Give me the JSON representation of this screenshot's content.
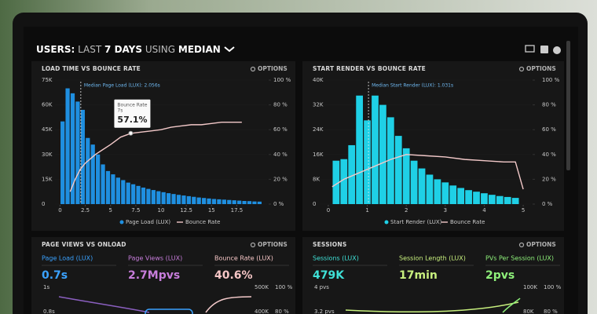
{
  "header": {
    "title_parts": [
      "USERS:",
      "LAST",
      "7 DAYS",
      "USING",
      "MEDIAN"
    ]
  },
  "panels": [
    {
      "title": "LOAD TIME VS BOUNCE RATE",
      "options": "OPTIONS",
      "chart": {
        "type": "histogram",
        "color": "#1f8fe0",
        "bar_name": "Page Load (LUX)",
        "bins": [
          0,
          0.5,
          1,
          1.5,
          2,
          2.5,
          3,
          3.5,
          4,
          4.5,
          5,
          5.5,
          6,
          6.5,
          7,
          7.5,
          8,
          8.5,
          9,
          9.5,
          10,
          10.5,
          11,
          11.5,
          12,
          12.5,
          13,
          13.5,
          14,
          14.5,
          15,
          15.5,
          16,
          16.5,
          17,
          17.5,
          18,
          18.5,
          19,
          19.5,
          20
        ],
        "counts": [
          50000,
          70000,
          67000,
          62000,
          57000,
          40000,
          36000,
          30000,
          24000,
          20000,
          18000,
          16000,
          14500,
          13000,
          12000,
          11000,
          10000,
          9200,
          8500,
          7800,
          7200,
          6600,
          6100,
          5600,
          5200,
          4800,
          4400,
          4000,
          3700,
          3400,
          3100,
          2900,
          2700,
          2500,
          2300,
          2100,
          1900,
          1800,
          1600,
          1500
        ],
        "xlim": [
          -0.5,
          20.5
        ],
        "xticks": [
          0,
          2.5,
          5,
          7.5,
          10,
          12.5,
          15,
          17.5
        ],
        "ylim": [
          0,
          75000
        ],
        "yticks": [
          0,
          {
            "value": 15000,
            "label": "15K"
          },
          {
            "value": 30000,
            "label": "30K"
          },
          {
            "value": 45000,
            "label": "45K"
          },
          {
            "value": 60000,
            "label": "60K"
          },
          {
            "value": 75000,
            "label": "75K"
          }
        ],
        "y2lim": [
          0,
          100
        ],
        "y2ticks": [
          {
            "value": 0,
            "label": "0 %"
          },
          {
            "value": 20,
            "label": "20 %"
          },
          {
            "value": 40,
            "label": "40 %"
          },
          {
            "value": 60,
            "label": "60 %"
          },
          {
            "value": 80,
            "label": "80 %"
          },
          {
            "value": 100,
            "label": "100 %"
          }
        ],
        "series": [
          {
            "name": "Bounce Rate",
            "color": "#f3c9c9",
            "axis": "y2",
            "x": [
              1,
              1.5,
              2,
              2.5,
              3.5,
              5,
              6,
              7,
              8,
              9,
              10,
              11,
              12,
              13,
              14,
              15,
              16,
              17,
              18
            ],
            "values": [
              10,
              20,
              28,
              33,
              40,
              48,
              54,
              57,
              58,
              59,
              60,
              62,
              63,
              64,
              64,
              65,
              66,
              66,
              66
            ]
          }
        ],
        "median": {
          "value": 2.056,
          "label": "Median Page Load (LUX): 2.056s"
        },
        "tooltip": {
          "title": "Bounce Rate",
          "x": 7,
          "x_label": "7s",
          "value": 57.1,
          "value_label": "57.1%"
        }
      }
    },
    {
      "title": "START RENDER VS BOUNCE RATE",
      "options": "OPTIONS",
      "chart": {
        "type": "histogram",
        "color": "#1fd0e6",
        "bar_name": "Start Render (LUX)",
        "bins": [
          0.1,
          0.3,
          0.5,
          0.7,
          0.9,
          1.1,
          1.3,
          1.5,
          1.7,
          1.9,
          2.1,
          2.3,
          2.5,
          2.7,
          2.9,
          3.1,
          3.3,
          3.5,
          3.7,
          3.9,
          4.1,
          4.3,
          4.5,
          4.7,
          4.9
        ],
        "counts": [
          14000,
          14500,
          19000,
          35000,
          27000,
          35000,
          32000,
          28000,
          22000,
          18000,
          14000,
          11500,
          9500,
          8000,
          7000,
          6000,
          5200,
          4500,
          4000,
          3500,
          3000,
          2600,
          2300,
          2000
        ],
        "xlim": [
          -0.2,
          5.2
        ],
        "xticks": [
          0,
          1,
          2,
          3,
          4,
          5
        ],
        "ylim": [
          0,
          40000
        ],
        "yticks": [
          0,
          {
            "value": 8000,
            "label": "8K"
          },
          {
            "value": 16000,
            "label": "16K"
          },
          {
            "value": 24000,
            "label": "24K"
          },
          {
            "value": 32000,
            "label": "32K"
          },
          {
            "value": 40000,
            "label": "40K"
          }
        ],
        "y2lim": [
          0,
          100
        ],
        "y2ticks": [
          {
            "value": 0,
            "label": "0 %"
          },
          {
            "value": 20,
            "label": "20 %"
          },
          {
            "value": 40,
            "label": "40 %"
          },
          {
            "value": 60,
            "label": "60 %"
          },
          {
            "value": 80,
            "label": "80 %"
          },
          {
            "value": 100,
            "label": "100 %"
          }
        ],
        "series": [
          {
            "name": "Bounce Rate",
            "color": "#f3c9c9",
            "axis": "y2",
            "x": [
              0.1,
              0.4,
              0.7,
              1,
              1.3,
              1.6,
              2,
              2.5,
              3,
              3.5,
              4,
              4.5,
              4.8,
              5
            ],
            "values": [
              14,
              20,
              24,
              28,
              32,
              36,
              40,
              39,
              38,
              36,
              35,
              34,
              34,
              12
            ]
          }
        ],
        "median": {
          "value": 1.031,
          "label": "Median Start Render (LUX): 1.031s"
        }
      }
    },
    {
      "title": "PAGE VIEWS VS ONLOAD",
      "options": "OPTIONS",
      "metrics": [
        {
          "label": "Page Load (LUX)",
          "value": "0.7s",
          "color": "#3aa2ff"
        },
        {
          "label": "Page Views (LUX)",
          "value": "2.7Mpvs",
          "color": "#c77ddb"
        },
        {
          "label": "Bounce Rate (LUX)",
          "value": "40.6%",
          "color": "#f6c6c6"
        }
      ],
      "left_axis": [
        "1s",
        "0.8s"
      ],
      "right_axis": [
        "500K",
        "400K"
      ],
      "far_axis": [
        "100 %",
        "80 %"
      ]
    },
    {
      "title": "SESSIONS",
      "options": "OPTIONS",
      "metrics": [
        {
          "label": "Sessions (LUX)",
          "value": "479K",
          "color": "#3fe0d6"
        },
        {
          "label": "Session Length (LUX)",
          "value": "17min",
          "color": "#c8f07e"
        },
        {
          "label": "PVs Per Session (LUX)",
          "value": "2pvs",
          "color": "#8ef07a"
        }
      ],
      "left_axis": [
        "4 pvs",
        "3.2 pvs"
      ],
      "right_axis": [
        "100K",
        "80K"
      ],
      "far_axis": [
        "100 %",
        "80 %"
      ]
    }
  ]
}
